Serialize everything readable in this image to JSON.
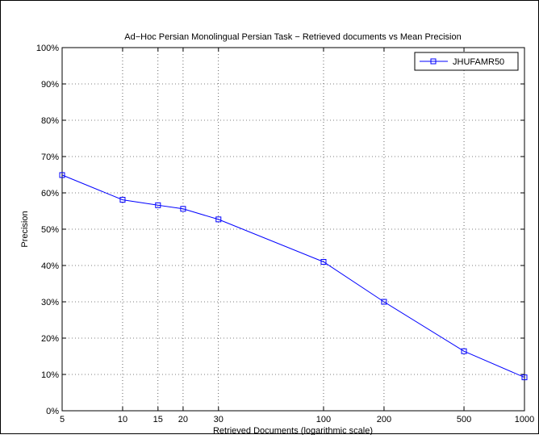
{
  "chart_data": {
    "type": "line",
    "title": "Ad−Hoc Persian Monolingual Persian Task − Retrieved documents vs Mean Precision",
    "xlabel": "Retrieved Documents (logarithmic scale)",
    "ylabel": "Precision",
    "x_scale": "log",
    "xlim": [
      5,
      1000
    ],
    "ylim": [
      0,
      100
    ],
    "x_ticks": [
      5,
      10,
      15,
      20,
      30,
      100,
      200,
      500,
      1000
    ],
    "x_tick_labels": [
      "5",
      "10",
      "15",
      "20",
      "30",
      "100",
      "200",
      "500",
      "1000"
    ],
    "y_ticks": [
      0,
      10,
      20,
      30,
      40,
      50,
      60,
      70,
      80,
      90,
      100
    ],
    "y_tick_labels": [
      "0%",
      "10%",
      "20%",
      "30%",
      "40%",
      "50%",
      "60%",
      "70%",
      "80%",
      "90%",
      "100%"
    ],
    "grid": true,
    "legend_position": "top-right",
    "series": [
      {
        "name": "JHUFAMR50",
        "color": "#0000ff",
        "marker": "square",
        "x": [
          5,
          10,
          15,
          20,
          30,
          100,
          200,
          500,
          1000
        ],
        "y": [
          64.9,
          58.1,
          56.6,
          55.6,
          52.7,
          41.0,
          30.0,
          16.4,
          9.2
        ]
      }
    ]
  }
}
